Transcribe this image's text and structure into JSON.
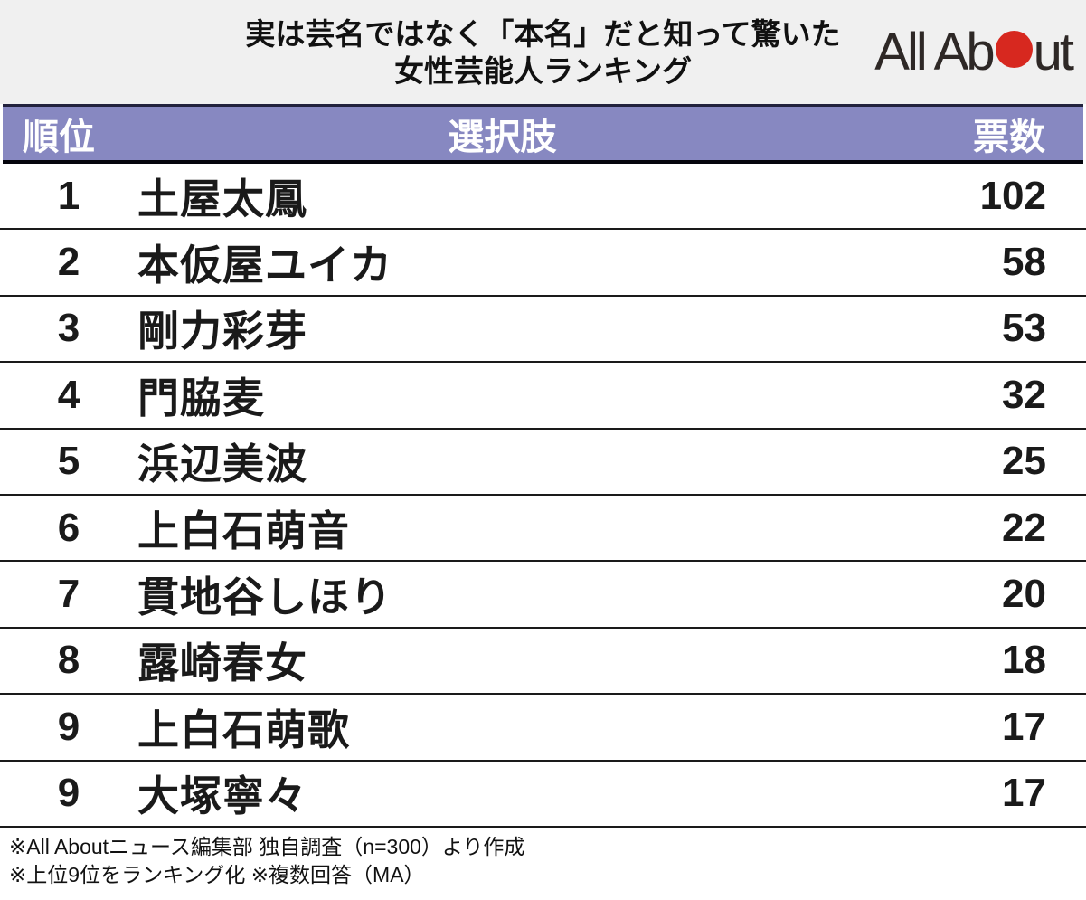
{
  "title": {
    "line1": "実は芸名ではなく「本名」だと知って驚いた",
    "line2": "女性芸能人ランキング"
  },
  "logo": {
    "name": "All About",
    "text_left": "All Ab",
    "text_right": "ut",
    "dot_color": "#d7281f",
    "text_color": "#2e2826"
  },
  "table": {
    "headers": {
      "rank": "順位",
      "choice": "選択肢",
      "votes": "票数"
    },
    "header_bg": "#8788c1",
    "rows": [
      {
        "rank": "1",
        "name": "土屋太鳳",
        "votes": "102"
      },
      {
        "rank": "2",
        "name": "本仮屋ユイカ",
        "votes": "58"
      },
      {
        "rank": "3",
        "name": "剛力彩芽",
        "votes": "53"
      },
      {
        "rank": "4",
        "name": "門脇麦",
        "votes": "32"
      },
      {
        "rank": "5",
        "name": "浜辺美波",
        "votes": "25"
      },
      {
        "rank": "6",
        "name": "上白石萌音",
        "votes": "22"
      },
      {
        "rank": "7",
        "name": "貫地谷しほり",
        "votes": "20"
      },
      {
        "rank": "8",
        "name": "露崎春女",
        "votes": "18"
      },
      {
        "rank": "9",
        "name": "上白石萌歌",
        "votes": "17"
      },
      {
        "rank": "9",
        "name": "大塚寧々",
        "votes": "17"
      }
    ]
  },
  "footer": {
    "line1": "※All Aboutニュース編集部 独自調査（n=300）より作成",
    "line2": "※上位9位をランキング化 ※複数回答（MA）"
  },
  "colors": {
    "title_bg": "#f0f0f0",
    "header_bg": "#8788c1",
    "header_border_top": "#22223d",
    "header_border_bottom": "#05050d",
    "row_divider": "#1a1a1a",
    "logo_red": "#d7281f"
  },
  "chart_data": {
    "type": "table",
    "title": "実は芸名ではなく「本名」だと知って驚いた女性芸能人ランキング",
    "columns": [
      "順位",
      "選択肢",
      "票数"
    ],
    "rows": [
      [
        1,
        "土屋太鳳",
        102
      ],
      [
        2,
        "本仮屋ユイカ",
        58
      ],
      [
        3,
        "剛力彩芽",
        53
      ],
      [
        4,
        "門脇麦",
        32
      ],
      [
        5,
        "浜辺美波",
        25
      ],
      [
        6,
        "上白石萌音",
        22
      ],
      [
        7,
        "貫地谷しほり",
        20
      ],
      [
        8,
        "露崎春女",
        18
      ],
      [
        9,
        "上白石萌歌",
        17
      ],
      [
        9,
        "大塚寧々",
        17
      ]
    ],
    "notes": [
      "※All Aboutニュース編集部 独自調査（n=300）より作成",
      "※上位9位をランキング化 ※複数回答（MA）"
    ]
  }
}
